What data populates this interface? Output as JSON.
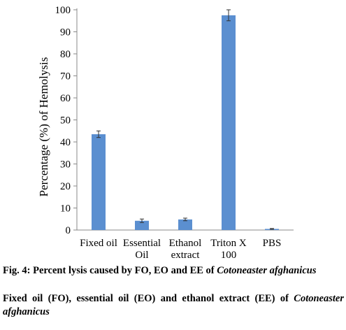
{
  "chart_data": {
    "type": "bar",
    "categories": [
      [
        "Fixed oil"
      ],
      [
        "Essential",
        "Oil"
      ],
      [
        "Ethanol",
        "extract"
      ],
      [
        "Triton X",
        "100"
      ],
      [
        "PBS"
      ]
    ],
    "values": [
      43.5,
      4.2,
      4.8,
      97.5,
      0.5
    ],
    "errors": [
      1.5,
      0.8,
      0.6,
      2.5,
      0.2
    ],
    "ylabel": "Percentage (%) of Hemolysis",
    "xlabel": "",
    "ylim": [
      0,
      100
    ],
    "yticks": [
      0,
      10,
      20,
      30,
      40,
      50,
      60,
      70,
      80,
      90,
      100
    ],
    "grid": false,
    "bar_color": "#5b8fd0"
  },
  "caption": {
    "line1_prefix": "Fig. 4: Percent lysis caused by FO, EO and EE of ",
    "line1_species": "Cotoneaster afghanicus",
    "line2_text": "Fixed oil (FO), essential oil (EO) and ethanol extract (EE) of ",
    "line2_species": "Cotoneaster afghanicus"
  }
}
